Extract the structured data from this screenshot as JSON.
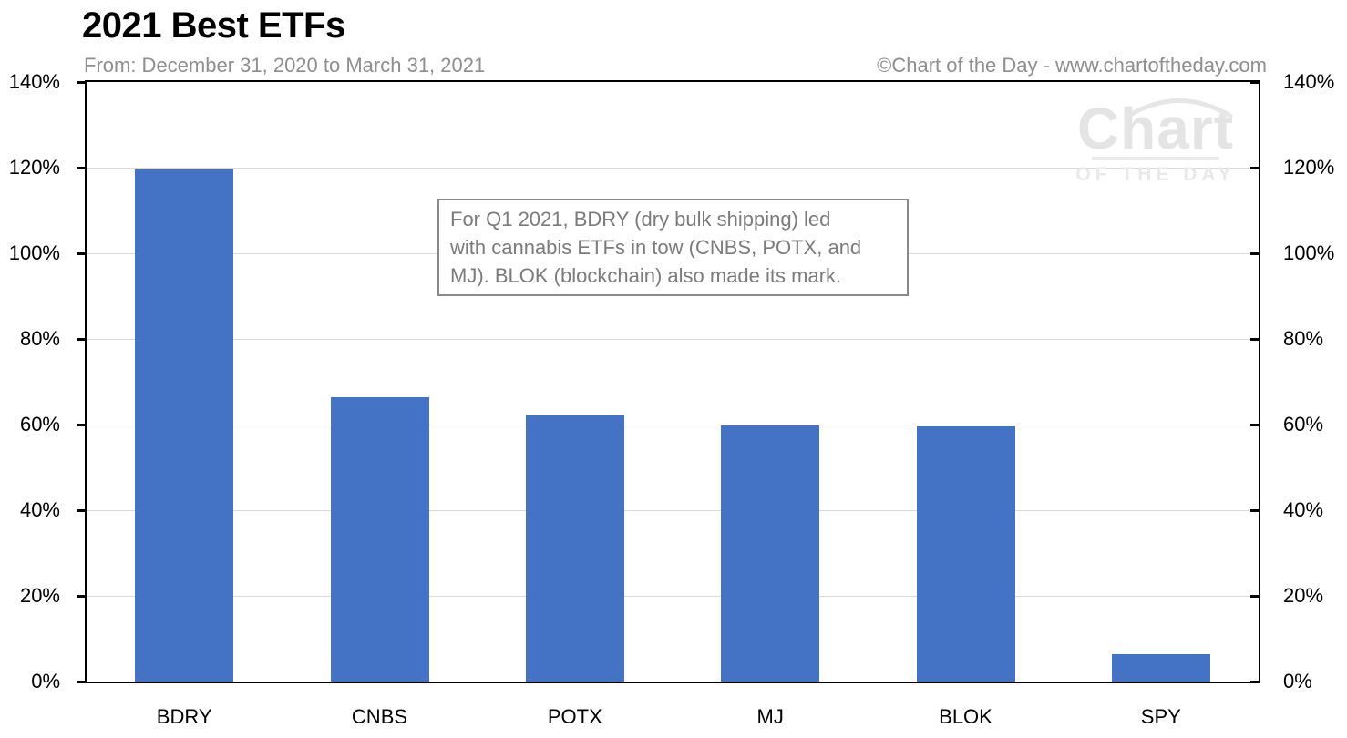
{
  "header": {
    "title": "2021 Best ETFs",
    "subtitle": "From: December 31, 2020 to March 31, 2021",
    "copyright": "©Chart of the Day - www.chartoftheday.com"
  },
  "watermark": {
    "line1": "Chart",
    "line2": "OF THE DAY"
  },
  "annotation": {
    "lines": [
      "For Q1 2021, BDRY (dry bulk shipping) led",
      "with cannabis ETFs in tow (CNBS, POTX, and",
      "MJ). BLOK (blockchain) also made its mark."
    ]
  },
  "chart_data": {
    "type": "bar",
    "title": "2021 Best ETFs",
    "subtitle": "From: December 31, 2020 to March 31, 2021",
    "categories": [
      "BDRY",
      "CNBS",
      "POTX",
      "MJ",
      "BLOK",
      "SPY"
    ],
    "values": [
      119.5,
      66.4,
      62.2,
      59.8,
      59.6,
      6.4
    ],
    "xlabel": "",
    "ylabel": "",
    "ylim": [
      0,
      140
    ],
    "yticks": [
      0,
      20,
      40,
      60,
      80,
      100,
      120,
      140
    ],
    "ytick_format": "percent",
    "grid": true,
    "legend": "none",
    "colors": {
      "bar": "#4472C4",
      "gridline": "#D9D9D9",
      "axis": "#000000",
      "subtitle_text": "#8e8e8e",
      "annotation_text": "#7b7b7b",
      "watermark": "#e4e4e4"
    }
  }
}
